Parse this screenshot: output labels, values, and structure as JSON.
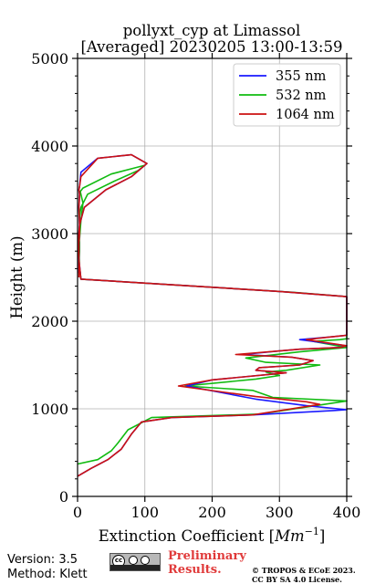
{
  "chart_data": {
    "type": "line",
    "title": "pollyxt_cyp at Limassol",
    "subtitle": "[Averaged] 20230205 13:00-13:59",
    "xlabel": "Extinction Coefficient [Mm⁻¹]",
    "xlabel_main": "Extinction Coefficient [",
    "xlabel_unit": "Mm",
    "xlabel_exp": "−1",
    "xlabel_close": "]",
    "ylabel": "Height (m)",
    "xlim": [
      0,
      400
    ],
    "ylim": [
      0,
      5000
    ],
    "xticks": [
      0,
      100,
      200,
      300,
      400
    ],
    "yticks": [
      0,
      1000,
      2000,
      3000,
      4000,
      5000
    ],
    "grid": true,
    "legend": "top-right",
    "series": [
      {
        "name": "355 nm",
        "color": "#1a1aff",
        "x": [
          0,
          20,
          45,
          65,
          80,
          95,
          140,
          260,
          380,
          400,
          340,
          265,
          162,
          200,
          310,
          265,
          270,
          330,
          350,
          318,
          245,
          300,
          330,
          390,
          400,
          330,
          375,
          400,
          400,
          300,
          5,
          2,
          1,
          3,
          2,
          3,
          2,
          3,
          5,
          30,
          80,
          103,
          80,
          42,
          10,
          3,
          3,
          2,
          2,
          2,
          2
        ],
        "y": [
          230,
          320,
          420,
          540,
          710,
          850,
          900,
          930,
          980,
          990,
          1035,
          1110,
          1260,
          1330,
          1410,
          1440,
          1470,
          1500,
          1550,
          1590,
          1620,
          1660,
          1680,
          1700,
          1720,
          1790,
          1820,
          1840,
          2280,
          2340,
          2480,
          2700,
          2900,
          3100,
          3300,
          3450,
          3500,
          3540,
          3700,
          3860,
          3900,
          3800,
          3650,
          3500,
          3300,
          3100,
          3000,
          2900,
          2800,
          2650,
          2550
        ]
      },
      {
        "name": "532 nm",
        "color": "#11bb11",
        "x": [
          0,
          30,
          50,
          60,
          75,
          110,
          270,
          400,
          290,
          260,
          160,
          265,
          300,
          280,
          310,
          360,
          280,
          250,
          330,
          400,
          350,
          390,
          400,
          400,
          320,
          5,
          3,
          2,
          5,
          8,
          4,
          8,
          50,
          85,
          100,
          90,
          55,
          15,
          5,
          3,
          4,
          2,
          3,
          3,
          2,
          4
        ],
        "y": [
          370,
          420,
          520,
          610,
          760,
          900,
          940,
          1090,
          1130,
          1210,
          1260,
          1340,
          1380,
          1420,
          1440,
          1500,
          1530,
          1580,
          1650,
          1700,
          1770,
          1790,
          1800,
          2280,
          2330,
          2480,
          2600,
          2850,
          3150,
          3350,
          3480,
          3520,
          3680,
          3750,
          3780,
          3720,
          3600,
          3450,
          3300,
          3200,
          3100,
          3000,
          2900,
          2800,
          2650,
          2550
        ]
      },
      {
        "name": "1064 nm",
        "color": "#cc1111",
        "x": [
          0,
          20,
          45,
          65,
          80,
          95,
          140,
          260,
          360,
          340,
          265,
          150,
          200,
          310,
          265,
          270,
          330,
          350,
          318,
          235,
          300,
          330,
          390,
          400,
          340,
          375,
          400,
          400,
          300,
          5,
          2,
          1,
          3,
          2,
          3,
          2,
          3,
          5,
          30,
          80,
          103,
          80,
          42,
          10,
          3,
          3,
          2,
          2,
          2,
          2,
          2
        ],
        "y": [
          230,
          320,
          420,
          540,
          710,
          850,
          900,
          930,
          1050,
          1080,
          1140,
          1260,
          1330,
          1410,
          1440,
          1470,
          1500,
          1550,
          1590,
          1620,
          1660,
          1680,
          1700,
          1720,
          1790,
          1820,
          1840,
          2280,
          2340,
          2480,
          2700,
          2900,
          3100,
          3300,
          3450,
          3500,
          3540,
          3650,
          3860,
          3900,
          3800,
          3650,
          3500,
          3300,
          3100,
          3000,
          2900,
          2800,
          2650,
          2550,
          2500
        ]
      }
    ]
  },
  "footer": {
    "version": "Version: 3.5",
    "method": "Method: Klett",
    "cc_logo": "cc-by-sa-logo",
    "preliminary_line1": "Preliminary",
    "preliminary_line2": "Results.",
    "copyright_line1": "© TROPOS & ECoE 2023.",
    "copyright_line2": "CC BY SA 4.0 License."
  }
}
